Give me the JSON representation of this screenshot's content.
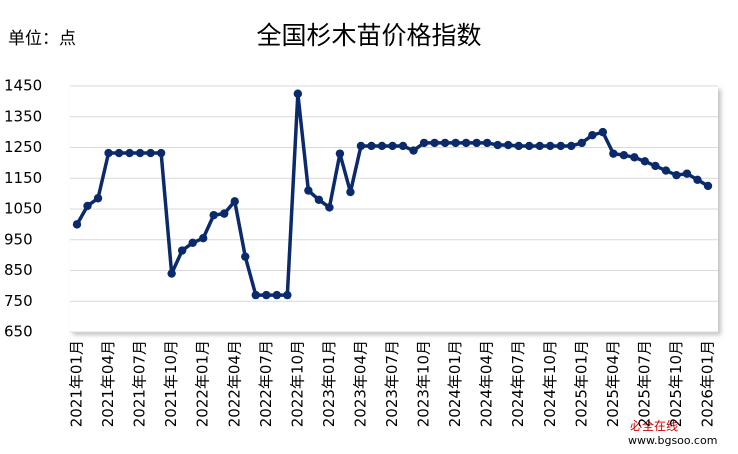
{
  "chart_data": {
    "type": "line",
    "title": "全国杉木苗价格指数",
    "unit": "单位：点",
    "watermark": "必全在线",
    "watermark_url": "www.bgsoo.com",
    "categories": [
      "2021年01月",
      null,
      null,
      "2021年04月",
      null,
      null,
      "2021年07月",
      null,
      null,
      "2021年10月",
      null,
      null,
      "2022年01月",
      null,
      null,
      "2022年04月",
      null,
      null,
      "2022年07月",
      null,
      null,
      "2022年10月",
      null,
      null,
      "2023年01月",
      null,
      null,
      "2023年04月",
      null,
      null,
      "2023年07月",
      null,
      null,
      "2023年10月",
      null,
      null,
      "2024年01月",
      null,
      null,
      "2024年04月",
      null,
      null,
      "2024年07月",
      null,
      null,
      "2024年10月",
      null,
      null,
      "2025年01月",
      null,
      null,
      "2025年04月",
      null,
      null,
      "2025年07月",
      null,
      null,
      "2025年10月",
      null,
      null,
      "2026年01月"
    ],
    "series": [
      {
        "name": "价格指数",
        "color": "#0b2a6b",
        "values": [
          1000,
          1060,
          1085,
          1232,
          1232,
          1232,
          1232,
          1232,
          1232,
          840,
          915,
          940,
          955,
          1030,
          1035,
          1075,
          895,
          770,
          770,
          770,
          770,
          1425,
          1110,
          1080,
          1055,
          1230,
          1105,
          1255,
          1255,
          1255,
          1255,
          1255,
          1240,
          1265,
          1265,
          1265,
          1265,
          1265,
          1265,
          1265,
          1258,
          1258,
          1255,
          1255,
          1255,
          1255,
          1255,
          1255,
          1265,
          1290,
          1300,
          1230,
          1225,
          1218,
          1205,
          1190,
          1175,
          1160,
          1165,
          1145,
          1125
        ]
      }
    ],
    "ylim": [
      650,
      1450
    ],
    "yticks": [
      650,
      750,
      850,
      950,
      1050,
      1150,
      1250,
      1350,
      1450
    ],
    "grid": true
  }
}
